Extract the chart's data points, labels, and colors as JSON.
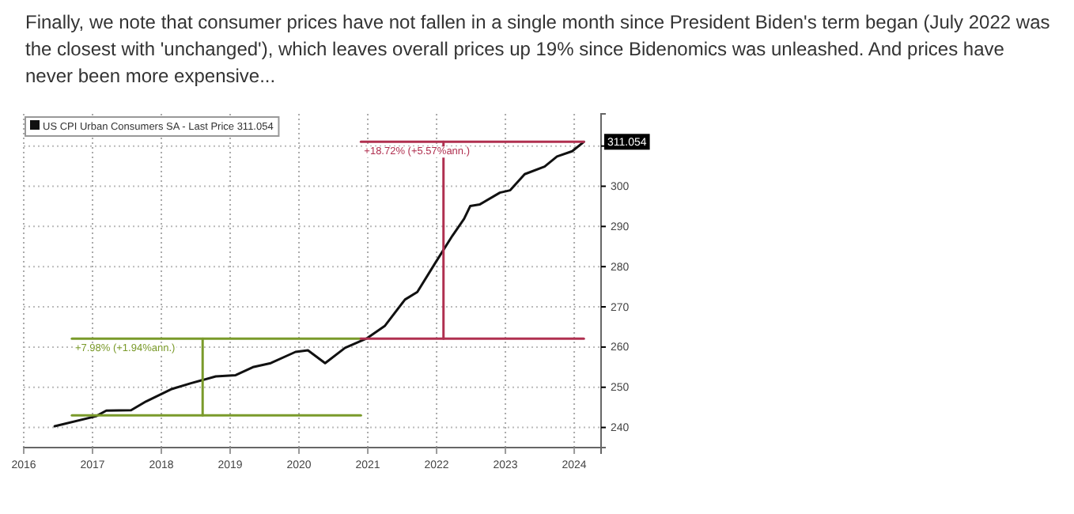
{
  "chart_data": {
    "type": "line",
    "title": "Finally, we note that consumer prices have not fallen in a single month since President Biden's term began (July 2022 was the closest with 'unchanged'), which leaves overall prices up 19% since Bidenomics was unleashed. And prices have never been more expensive...",
    "series": [
      {
        "name": "US CPI Urban Consumers SA - Last Price 311.054",
        "color": "#111111",
        "x": [
          2016.45,
          2017.05,
          2017.2,
          2017.56,
          2017.78,
          2018.14,
          2018.43,
          2018.79,
          2019.08,
          2019.33,
          2019.59,
          2019.95,
          2020.13,
          2020.38,
          2020.67,
          2020.98,
          2021.25,
          2021.54,
          2021.72,
          2021.98,
          2022.23,
          2022.4,
          2022.49,
          2022.63,
          2022.92,
          2023.07,
          2023.28,
          2023.57,
          2023.75,
          2023.97,
          2024.14
        ],
        "values": [
          240.3,
          242.8,
          244.2,
          244.3,
          246.5,
          249.5,
          251,
          252.7,
          253,
          255,
          256,
          258.8,
          259.2,
          256,
          259.8,
          262.1,
          265.3,
          271.8,
          273.7,
          280.9,
          287.7,
          291.9,
          295.1,
          295.5,
          298.4,
          299,
          303,
          304.9,
          307.4,
          308.7,
          311.054
        ]
      },
      {
        "color": "#7a9a2a",
        "x": [
          2016.7,
          2020.9
        ],
        "values": [
          243,
          243
        ]
      },
      {
        "color": "#7a9a2a",
        "x": [
          2016.7,
          2020.9
        ],
        "values": [
          262.1,
          262.1
        ]
      },
      {
        "color": "#7a9a2a",
        "x": [
          2018.6,
          2018.6
        ],
        "values": [
          243,
          262.1
        ]
      },
      {
        "color": "#b03050",
        "x": [
          2020.9,
          2024.14
        ],
        "values": [
          262.1,
          262.1
        ]
      },
      {
        "color": "#b03050",
        "x": [
          2020.9,
          2024.14
        ],
        "values": [
          311.054,
          311.054
        ]
      },
      {
        "color": "#b03050",
        "x": [
          2022.1,
          2022.1
        ],
        "values": [
          262.1,
          311.054
        ]
      }
    ],
    "annotations": [
      {
        "text": "+7.98% (+1.94%ann.)",
        "x": 2016.7,
        "y": 262.1
      },
      {
        "text": "+18.72% (+5.57%ann.)",
        "x": 2020.9,
        "y": 311.054
      },
      {
        "text": "311.054",
        "x": 2024.14,
        "y": 311.054
      }
    ],
    "xlim": [
      2016,
      2024.39
    ],
    "xticks": [
      2016,
      2017,
      2018,
      2019,
      2020,
      2021,
      2022,
      2023,
      2024
    ],
    "ylim": [
      235,
      318
    ],
    "yticks": [
      240,
      250,
      260,
      270,
      280,
      290,
      300,
      {
        "value": 310,
        "label": null
      }
    ],
    "grid": true,
    "legend": "top left",
    "marker": "none",
    "line_style": "solid"
  }
}
